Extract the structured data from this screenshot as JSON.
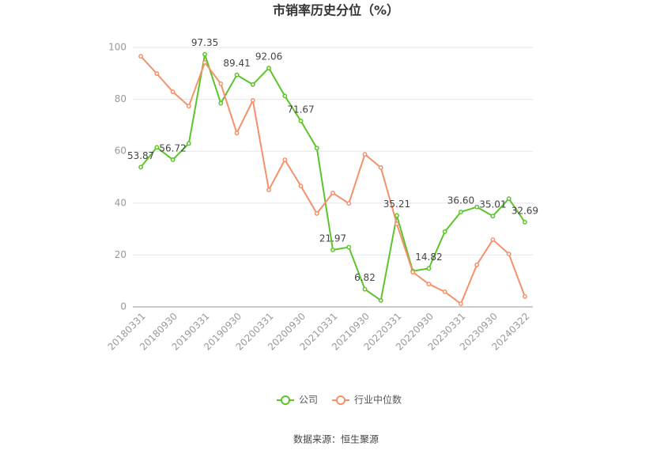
{
  "chart_data": {
    "type": "line",
    "title": "市销率历史分位（%）",
    "source": "数据来源：恒生聚源",
    "categories": [
      "20180331",
      null,
      "20180930",
      null,
      "20190331",
      null,
      "20190930",
      null,
      "20200331",
      null,
      "20200930",
      null,
      "20210331",
      null,
      "20210930",
      null,
      "20220331",
      null,
      "20220930",
      null,
      "20230331",
      null,
      "20230930",
      null,
      "20240322"
    ],
    "series": [
      {
        "name": "公司",
        "color": "#5cc42a",
        "values": [
          53.87,
          61.5,
          56.72,
          63.0,
          97.35,
          78.5,
          89.41,
          85.7,
          92.06,
          81.3,
          71.67,
          61.2,
          21.97,
          23.0,
          6.82,
          2.5,
          35.21,
          13.8,
          14.82,
          29.0,
          36.6,
          38.5,
          35.01,
          41.7,
          32.69
        ],
        "value_labels": [
          "53.87",
          null,
          "56.72",
          null,
          "97.35",
          null,
          "89.41",
          null,
          "92.06",
          null,
          "71.67",
          null,
          "21.97",
          null,
          "6.82",
          null,
          "35.21",
          null,
          "14.82",
          null,
          "36.60",
          null,
          "35.01",
          null,
          "32.69"
        ]
      },
      {
        "name": "行业中位数",
        "color": "#f4916b",
        "values": [
          96.6,
          89.9,
          82.9,
          77.4,
          94.2,
          86.0,
          67.0,
          79.6,
          45.1,
          56.7,
          46.6,
          36.0,
          43.9,
          39.9,
          58.8,
          53.7,
          32.0,
          13.4,
          8.8,
          5.8,
          1.2,
          16.2,
          25.9,
          20.4,
          4.0
        ]
      }
    ],
    "ylim": [
      0,
      100
    ],
    "yticks": [
      0,
      20,
      40,
      60,
      80,
      100
    ],
    "grid": true,
    "legend": "bottom"
  }
}
